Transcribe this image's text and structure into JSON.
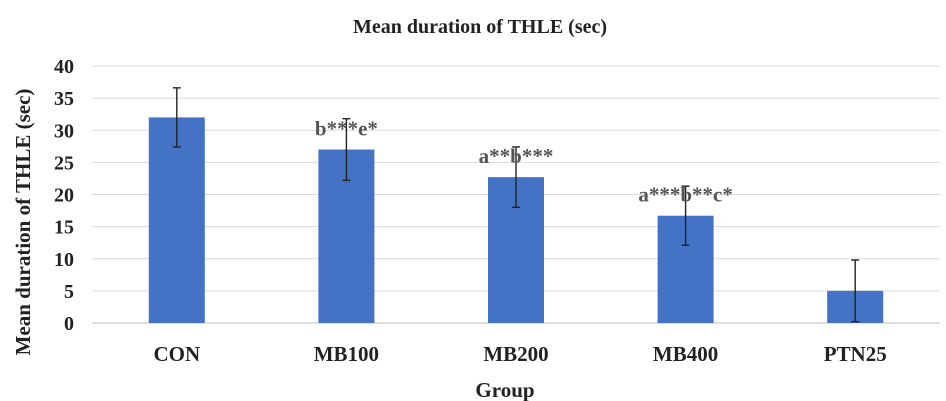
{
  "chart_data": {
    "type": "bar",
    "title": "Mean duration of THLE (sec)",
    "xlabel": "Group",
    "ylabel": "Mean duration of THLE (sec)",
    "categories": [
      "CON",
      "MB100",
      "MB200",
      "MB400",
      "PTN25"
    ],
    "values": [
      32,
      27,
      22.7,
      16.7,
      5
    ],
    "error": [
      4.6,
      4.8,
      4.7,
      4.6,
      4.8
    ],
    "annotations": [
      "",
      "b***e*",
      "a**b***",
      "a***b**c*",
      ""
    ],
    "ylim": [
      0,
      40
    ],
    "yticks": [
      0,
      5,
      10,
      15,
      20,
      25,
      30,
      35,
      40
    ],
    "grid": true,
    "legend": "none",
    "bar_color": "#4472c4"
  }
}
